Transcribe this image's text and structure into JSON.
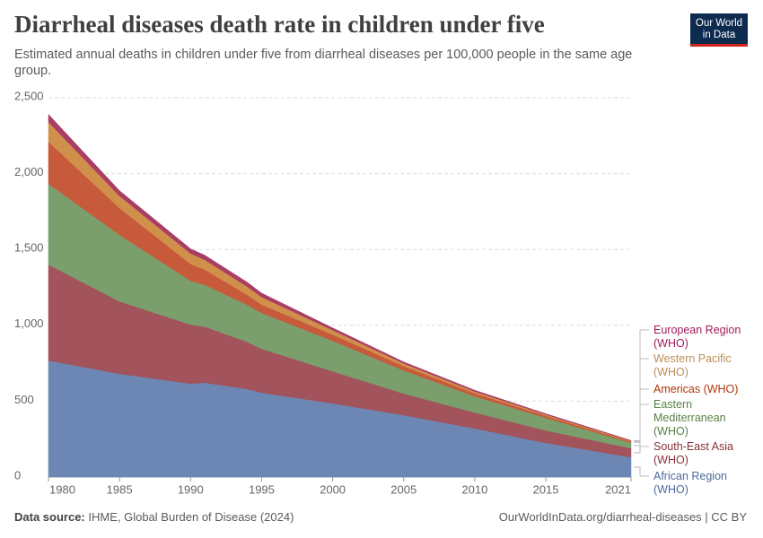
{
  "logo": "Our World in Data",
  "footer": {
    "source_label": "Data source:",
    "source": "IHME, Global Burden of Disease (2024)",
    "url": "OurWorldInData.org/diarrheal-diseases | CC BY"
  },
  "chart_data": {
    "type": "stacked_area",
    "title": "Diarrheal diseases death rate in children under five",
    "subtitle": "Estimated annual deaths in children under five from diarrheal diseases per 100,000 people in the same age group.",
    "x": [
      1980,
      1985,
      1990,
      1991,
      1994,
      1995,
      2000,
      2005,
      2010,
      2015,
      2021
    ],
    "series": [
      {
        "name": "African Region (WHO)",
        "color": "#6d87b4",
        "label_color": "#4c6a9c",
        "values": [
          768,
          680,
          615,
          622,
          580,
          556,
          485,
          408,
          320,
          225,
          130
        ]
      },
      {
        "name": "South-East Asia (WHO)",
        "color": "#a2535c",
        "label_color": "#883039",
        "values": [
          632,
          478,
          390,
          370,
          310,
          289,
          212,
          142,
          105,
          82,
          60
        ]
      },
      {
        "name": "Eastern Mediterranean (WHO)",
        "color": "#7a9e6c",
        "label_color": "#578145",
        "values": [
          533,
          438,
          289,
          275,
          245,
          237,
          201,
          153,
          107,
          83,
          35
        ]
      },
      {
        "name": "Americas (WHO)",
        "color": "#c85a3c",
        "label_color": "#b13507",
        "values": [
          277,
          177,
          110,
          100,
          65,
          55,
          40,
          28,
          20,
          14,
          8
        ]
      },
      {
        "name": "Western Pacific (WHO)",
        "color": "#d08f4a",
        "label_color": "#bc8e5a",
        "values": [
          130,
          80,
          70,
          65,
          55,
          50,
          30,
          18,
          12,
          8,
          5
        ]
      },
      {
        "name": "European Region (WHO)",
        "color": "#a83d66",
        "label_color": "#a2195b",
        "values": [
          50,
          35,
          30,
          30,
          28,
          25,
          15,
          10,
          8,
          5,
          3
        ]
      }
    ],
    "xlim": [
      1980,
      2021
    ],
    "xticks": [
      1980,
      1985,
      1990,
      1995,
      2000,
      2005,
      2010,
      2015,
      2021
    ],
    "ylim": [
      0,
      2500
    ],
    "yticks": [
      0,
      500,
      {
        "value": 1000,
        "label": "1,000"
      },
      {
        "value": 1500,
        "label": "1,500"
      },
      {
        "value": 2000,
        "label": "2,000"
      },
      {
        "value": 2500,
        "label": "2,500"
      }
    ],
    "grid": true
  }
}
